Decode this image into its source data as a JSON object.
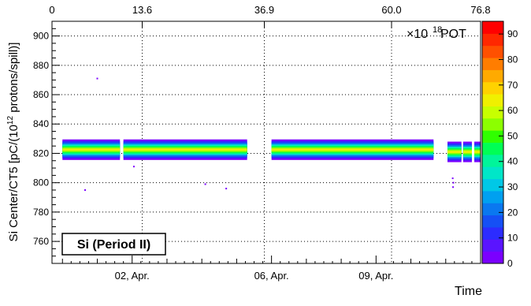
{
  "chart_data": {
    "type": "heatmap",
    "xlabel": "Time",
    "ylabel": "Si Center/CT5 [pC/(10^12 protons/spill)]",
    "ylabel_parts": {
      "pre": "Si Center/CT5 [pC/(10",
      "sup": "12",
      "post": " protons/spill)]"
    },
    "ylim": [
      745,
      910
    ],
    "yticks": [
      760,
      780,
      800,
      820,
      840,
      860,
      880,
      900
    ],
    "x_bottom_ticks": [
      {
        "label": "02, Apr.",
        "day": 2
      },
      {
        "label": "06, Apr.",
        "day": 6
      },
      {
        "label": "09, Apr.",
        "day": 9
      }
    ],
    "x_top_axis": {
      "unit_prefix": "×10",
      "unit_exp": "18",
      "unit_suffix": " POT",
      "ticks": [
        "0",
        "13.6",
        "36.9",
        "60.0",
        "76.8"
      ]
    },
    "x_range_days": [
      -0.3,
      12.0
    ],
    "grid": true,
    "annotation": "Si (Period II)",
    "colorbar": {
      "range": [
        0,
        95
      ],
      "ticks": [
        0,
        10,
        20,
        30,
        40,
        50,
        60,
        70,
        80,
        90
      ],
      "palette": [
        "#7b00ff",
        "#5a14ff",
        "#2c2cff",
        "#1550f5",
        "#0a78f0",
        "#00a0f0",
        "#00c8e6",
        "#00e6c8",
        "#00f59a",
        "#00ff55",
        "#30ff00",
        "#8cff00",
        "#c8ff00",
        "#f0f000",
        "#ffd200",
        "#ffaa00",
        "#ff7d00",
        "#ff5000",
        "#ff2800",
        "#ff0000"
      ]
    },
    "bands": [
      {
        "start_day": 0.0,
        "end_day": 1.65,
        "center": 822.5
      },
      {
        "start_day": 1.75,
        "end_day": 5.3,
        "center": 822.5
      },
      {
        "start_day": 6.0,
        "end_day": 10.65,
        "center": 822.5
      },
      {
        "start_day": 11.05,
        "end_day": 11.45,
        "center": 821
      },
      {
        "start_day": 11.5,
        "end_day": 11.75,
        "center": 821
      },
      {
        "start_day": 11.82,
        "end_day": 12.0,
        "center": 821
      }
    ],
    "outliers": [
      {
        "day": 1.0,
        "value": 871
      },
      {
        "day": 0.65,
        "value": 795
      },
      {
        "day": 2.05,
        "value": 811
      },
      {
        "day": 4.1,
        "value": 799
      },
      {
        "day": 4.7,
        "value": 796
      },
      {
        "day": 11.2,
        "value": 803
      },
      {
        "day": 11.22,
        "value": 800
      },
      {
        "day": 11.21,
        "value": 797
      }
    ]
  }
}
